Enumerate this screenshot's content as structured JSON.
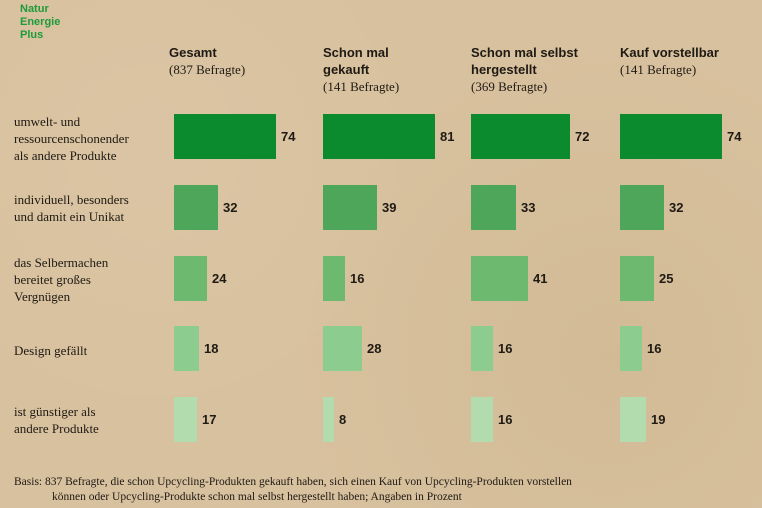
{
  "logo": {
    "line1": "Natur",
    "line2": "Energie",
    "line3": "Plus"
  },
  "chart_data": {
    "type": "bar",
    "title": "",
    "groups": [
      {
        "name": "Gesamt",
        "respondents": "(837 Befragte)"
      },
      {
        "name": "Schon mal gekauft",
        "respondents": "(141 Befragte)"
      },
      {
        "name": "Schon mal selbst hergestellt",
        "respondents": "(369 Befragte)"
      },
      {
        "name": "Kauf vorstellbar",
        "respondents": "(141 Befragte)"
      }
    ],
    "categories": [
      "umwelt- und ressourcenschonender als andere Produkte",
      "individuell, besonders und damit ein Unikat",
      "das Selbermachen bereitet großes Vergnügen",
      "Design gefällt",
      "ist günstiger als andere Produkte"
    ],
    "series": [
      {
        "name": "Gesamt",
        "values": [
          74,
          32,
          24,
          18,
          17
        ]
      },
      {
        "name": "Schon mal gekauft",
        "values": [
          81,
          39,
          16,
          28,
          8
        ]
      },
      {
        "name": "Schon mal selbst hergestellt",
        "values": [
          72,
          33,
          41,
          16,
          16
        ]
      },
      {
        "name": "Kauf vorstellbar",
        "values": [
          74,
          32,
          25,
          16,
          19
        ]
      }
    ],
    "row_colors": [
      "#0b8a2e",
      "#4ea65b",
      "#6cb96f",
      "#8ccc8e",
      "#b3dcae"
    ],
    "unit": "Prozent"
  },
  "headers": [
    {
      "line1": "Gesamt",
      "line2": "",
      "sub": "(837 Befragte)"
    },
    {
      "line1": "Schon mal",
      "line2": "gekauft",
      "sub": "(141 Befragte)"
    },
    {
      "line1": "Schon mal selbst",
      "line2": "hergestellt",
      "sub": "(369 Befragte)"
    },
    {
      "line1": "Kauf vorstellbar",
      "line2": "",
      "sub": "(141 Befragte)"
    }
  ],
  "row_labels": [
    [
      "umwelt- und",
      "ressourcenschonender",
      "als andere Produkte"
    ],
    [
      "individuell, besonders",
      "und damit ein Unikat"
    ],
    [
      "das Selbermachen",
      "bereitet großes",
      "Vergnügen"
    ],
    [
      "Design gefällt"
    ],
    [
      "ist günstiger als",
      "andere Produkte"
    ]
  ],
  "footnote": {
    "line1": "Basis: 837 Befragte, die schon Upcycling-Produkten gekauft haben, sich einen Kauf von Upcycling-Produkten vorstellen",
    "line2": "können oder Upcycling-Produkte schon mal selbst hergestellt haben; Angaben in Prozent"
  }
}
